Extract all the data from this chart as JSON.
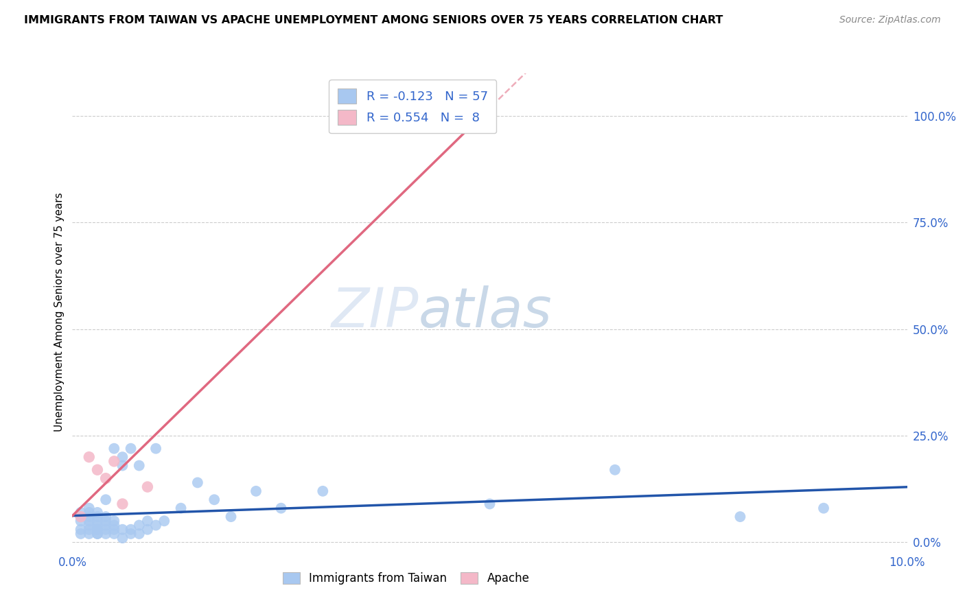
{
  "title": "IMMIGRANTS FROM TAIWAN VS APACHE UNEMPLOYMENT AMONG SENIORS OVER 75 YEARS CORRELATION CHART",
  "source": "Source: ZipAtlas.com",
  "ylabel": "Unemployment Among Seniors over 75 years",
  "xlim": [
    0.0,
    0.1
  ],
  "ylim": [
    -0.02,
    1.1
  ],
  "y_ticks_right": [
    0.0,
    0.25,
    0.5,
    0.75,
    1.0
  ],
  "y_tick_labels_right": [
    "0.0%",
    "25.0%",
    "50.0%",
    "75.0%",
    "100.0%"
  ],
  "legend_label1": "Immigrants from Taiwan",
  "legend_label2": "Apache",
  "legend_r1": "-0.123",
  "legend_n1": "57",
  "legend_r2": "0.554",
  "legend_n2": "8",
  "color_taiwan": "#a8c8f0",
  "color_apache": "#f4b8c8",
  "color_line_taiwan": "#2255aa",
  "color_line_apache": "#e06880",
  "watermark_zip": "ZIP",
  "watermark_atlas": "atlas",
  "taiwan_x": [
    0.001,
    0.001,
    0.001,
    0.001,
    0.001,
    0.002,
    0.002,
    0.002,
    0.002,
    0.002,
    0.002,
    0.002,
    0.003,
    0.003,
    0.003,
    0.003,
    0.003,
    0.003,
    0.003,
    0.003,
    0.004,
    0.004,
    0.004,
    0.004,
    0.004,
    0.004,
    0.005,
    0.005,
    0.005,
    0.005,
    0.005,
    0.006,
    0.006,
    0.006,
    0.006,
    0.007,
    0.007,
    0.007,
    0.008,
    0.008,
    0.008,
    0.009,
    0.009,
    0.01,
    0.01,
    0.011,
    0.013,
    0.015,
    0.017,
    0.019,
    0.022,
    0.025,
    0.03,
    0.05,
    0.065,
    0.08,
    0.09
  ],
  "taiwan_y": [
    0.05,
    0.06,
    0.07,
    0.02,
    0.03,
    0.04,
    0.03,
    0.05,
    0.06,
    0.07,
    0.02,
    0.08,
    0.02,
    0.03,
    0.04,
    0.05,
    0.06,
    0.07,
    0.02,
    0.03,
    0.02,
    0.03,
    0.04,
    0.05,
    0.06,
    0.1,
    0.02,
    0.03,
    0.05,
    0.22,
    0.04,
    0.01,
    0.03,
    0.18,
    0.2,
    0.02,
    0.03,
    0.22,
    0.02,
    0.04,
    0.18,
    0.03,
    0.05,
    0.04,
    0.22,
    0.05,
    0.08,
    0.14,
    0.1,
    0.06,
    0.12,
    0.08,
    0.12,
    0.09,
    0.17,
    0.06,
    0.08
  ],
  "apache_x": [
    0.001,
    0.002,
    0.003,
    0.004,
    0.005,
    0.006,
    0.009,
    0.048
  ],
  "apache_y": [
    0.06,
    0.2,
    0.17,
    0.15,
    0.19,
    0.09,
    0.13,
    1.0
  ]
}
